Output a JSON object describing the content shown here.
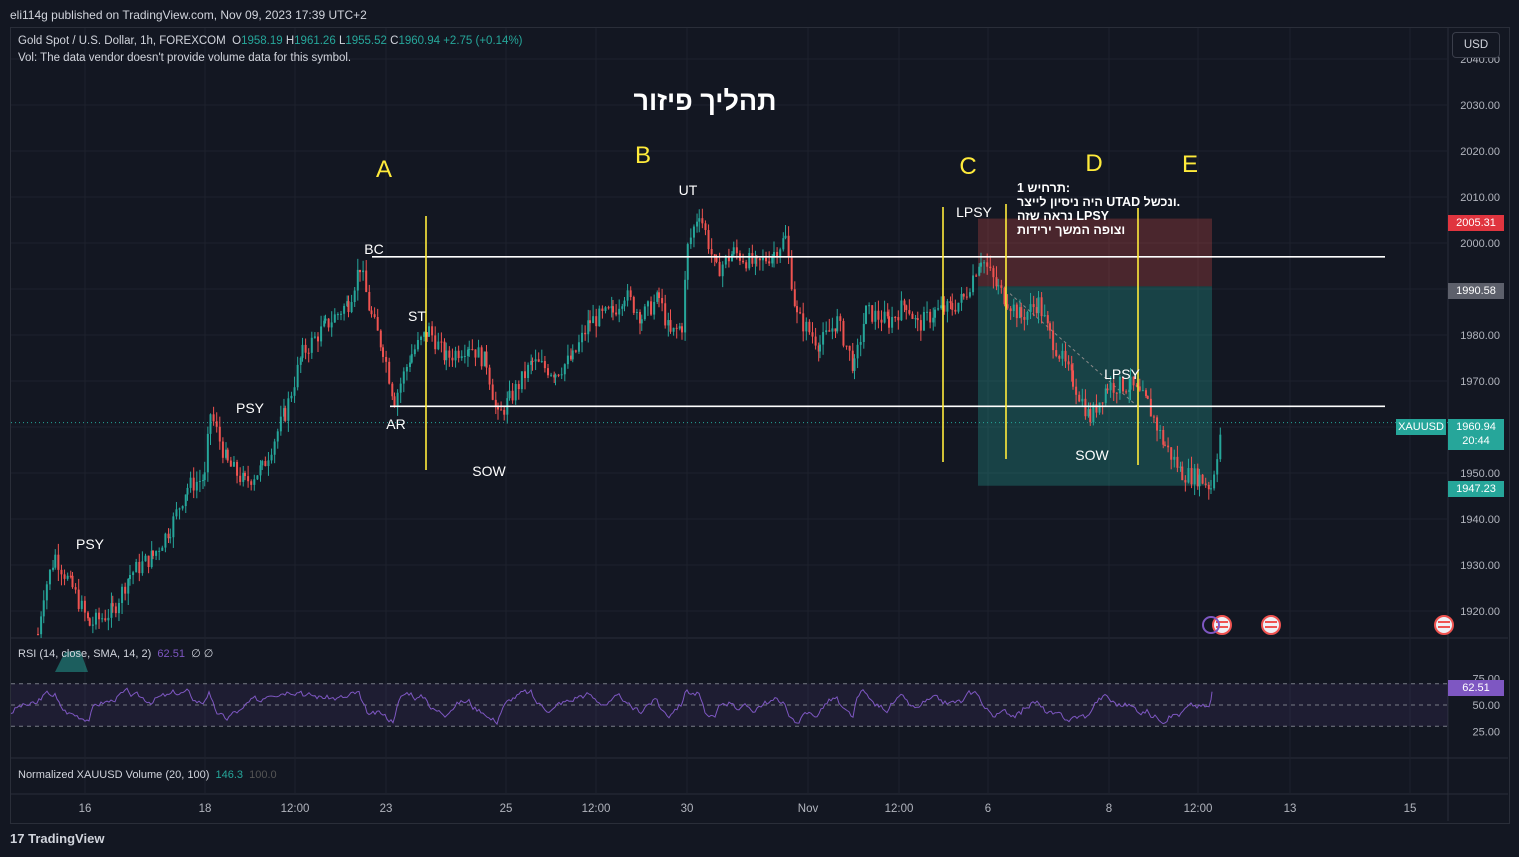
{
  "header": {
    "publisher": "eli114g published on TradingView.com, Nov 09, 2023 17:39 UTC+2",
    "symbol_desc": "Gold Spot / U.S. Dollar, 1h, FOREXCOM",
    "o_label": "O",
    "o_value": "1958.19",
    "h_label": "H",
    "h_value": "1961.26",
    "l_label": "L",
    "l_value": "1955.52",
    "c_label": "C",
    "c_value": "1960.94",
    "change": "+2.75 (+0.14%)",
    "vol_note": "Vol: The data vendor doesn't provide volume data for this symbol.",
    "currency": "USD"
  },
  "price_labels": {
    "stop": "2005.31",
    "entry": "1990.58",
    "target": "1947.23",
    "last_symbol": "XAUUSD",
    "last_price": "1960.94",
    "countdown": "20:44",
    "rsi_value": "62.51"
  },
  "rsi_legend": {
    "text": "RSI (14, close, SMA, 14, 2)",
    "value": "62.51",
    "extra": "∅ ∅"
  },
  "volnorm_legend": {
    "text": "Normalized XAUUSD Volume (20, 100)",
    "value": "146.3",
    "value2": "100.0"
  },
  "footer": {
    "logo": "TradingView"
  },
  "colors": {
    "up": "#26a69a",
    "down": "#ef5350",
    "rsi": "#7e57c2",
    "phase": "#ffeb3b",
    "bg": "#131722"
  },
  "chart_data": {
    "type": "candlestick",
    "title": "תהליך פיזור",
    "symbol": "XAUUSD",
    "timeframe": "1h",
    "ylim": [
      1914,
      2044
    ],
    "y_ticks": [
      "2040.00",
      "2030.00",
      "2020.00",
      "2010.00",
      "2000.00",
      "1990.00",
      "1980.00",
      "1970.00",
      "1960.00",
      "1950.00",
      "1940.00",
      "1930.00",
      "1920.00"
    ],
    "x_ticks": [
      "16",
      "18",
      "12:00",
      "23",
      "25",
      "12:00",
      "30",
      "Nov",
      "12:00",
      "6",
      "8",
      "12:00",
      "13",
      "15"
    ],
    "rsi_ticks": [
      "75.00",
      "50.00",
      "25.00"
    ],
    "rsi_levels": [
      70,
      50,
      30
    ],
    "range_levels": [
      1997,
      1964.5
    ],
    "phases": [
      "A",
      "B",
      "C",
      "D",
      "E"
    ],
    "annotations": [
      "PSY",
      "PSY",
      "BC",
      "ST",
      "AR",
      "SOW",
      "UT",
      "LPSY",
      "LPSY",
      "SOW"
    ],
    "note_lines": [
      "תרחיש 1:",
      "היה ניסיון לייצר UTAD ונכשל.",
      "נראה שזה LPSY",
      "וצופה המשך ירידות"
    ],
    "short_position": {
      "stop": 2005.31,
      "entry": 1990.58,
      "target": 1947.23
    },
    "price_path": [
      [
        0,
        1915
      ],
      [
        0.1,
        1924
      ],
      [
        0.3,
        1932
      ],
      [
        0.6,
        1925
      ],
      [
        0.9,
        1917
      ],
      [
        1.3,
        1920
      ],
      [
        1.6,
        1928
      ],
      [
        2.0,
        1932
      ],
      [
        2.3,
        1938
      ],
      [
        2.6,
        1947
      ],
      [
        2.9,
        1949
      ],
      [
        3.0,
        1963
      ],
      [
        3.3,
        1952
      ],
      [
        3.6,
        1948
      ],
      [
        3.9,
        1951
      ],
      [
        4.3,
        1963
      ],
      [
        4.6,
        1976
      ],
      [
        5.0,
        1982
      ],
      [
        5.4,
        1987
      ],
      [
        5.6,
        1995
      ],
      [
        5.8,
        1984
      ],
      [
        6.0,
        1977
      ],
      [
        6.2,
        1966
      ],
      [
        6.5,
        1976
      ],
      [
        6.8,
        1981
      ],
      [
        7.1,
        1975
      ],
      [
        7.5,
        1978
      ],
      [
        7.8,
        1974
      ],
      [
        8.0,
        1962
      ],
      [
        8.2,
        1966
      ],
      [
        8.6,
        1974
      ],
      [
        9.0,
        1972
      ],
      [
        9.3,
        1975
      ],
      [
        9.6,
        1983
      ],
      [
        10.0,
        1985
      ],
      [
        10.2,
        1989
      ],
      [
        10.5,
        1984
      ],
      [
        10.8,
        1988
      ],
      [
        11.0,
        1980
      ],
      [
        11.2,
        1982
      ],
      [
        11.3,
        1999
      ],
      [
        11.5,
        2007
      ],
      [
        11.8,
        1994
      ],
      [
        12.1,
        1998
      ],
      [
        12.5,
        1995
      ],
      [
        12.8,
        1998
      ],
      [
        13.0,
        2001
      ],
      [
        13.2,
        1984
      ],
      [
        13.6,
        1978
      ],
      [
        13.9,
        1983
      ],
      [
        14.2,
        1973
      ],
      [
        14.4,
        1985
      ],
      [
        14.8,
        1983
      ],
      [
        15.1,
        1987
      ],
      [
        15.3,
        1982
      ],
      [
        15.6,
        1985
      ],
      [
        15.9,
        1986
      ],
      [
        16.1,
        1988
      ],
      [
        16.4,
        1997
      ],
      [
        16.7,
        1990
      ],
      [
        17.1,
        1984
      ],
      [
        17.4,
        1987
      ],
      [
        17.6,
        1980
      ],
      [
        18.0,
        1970
      ],
      [
        18.3,
        1962
      ],
      [
        18.6,
        1969
      ],
      [
        19.0,
        1969
      ],
      [
        19.3,
        1965
      ],
      [
        19.6,
        1956
      ],
      [
        19.9,
        1950
      ],
      [
        20.2,
        1949
      ],
      [
        20.4,
        1947
      ],
      [
        20.6,
        1961
      ]
    ]
  }
}
